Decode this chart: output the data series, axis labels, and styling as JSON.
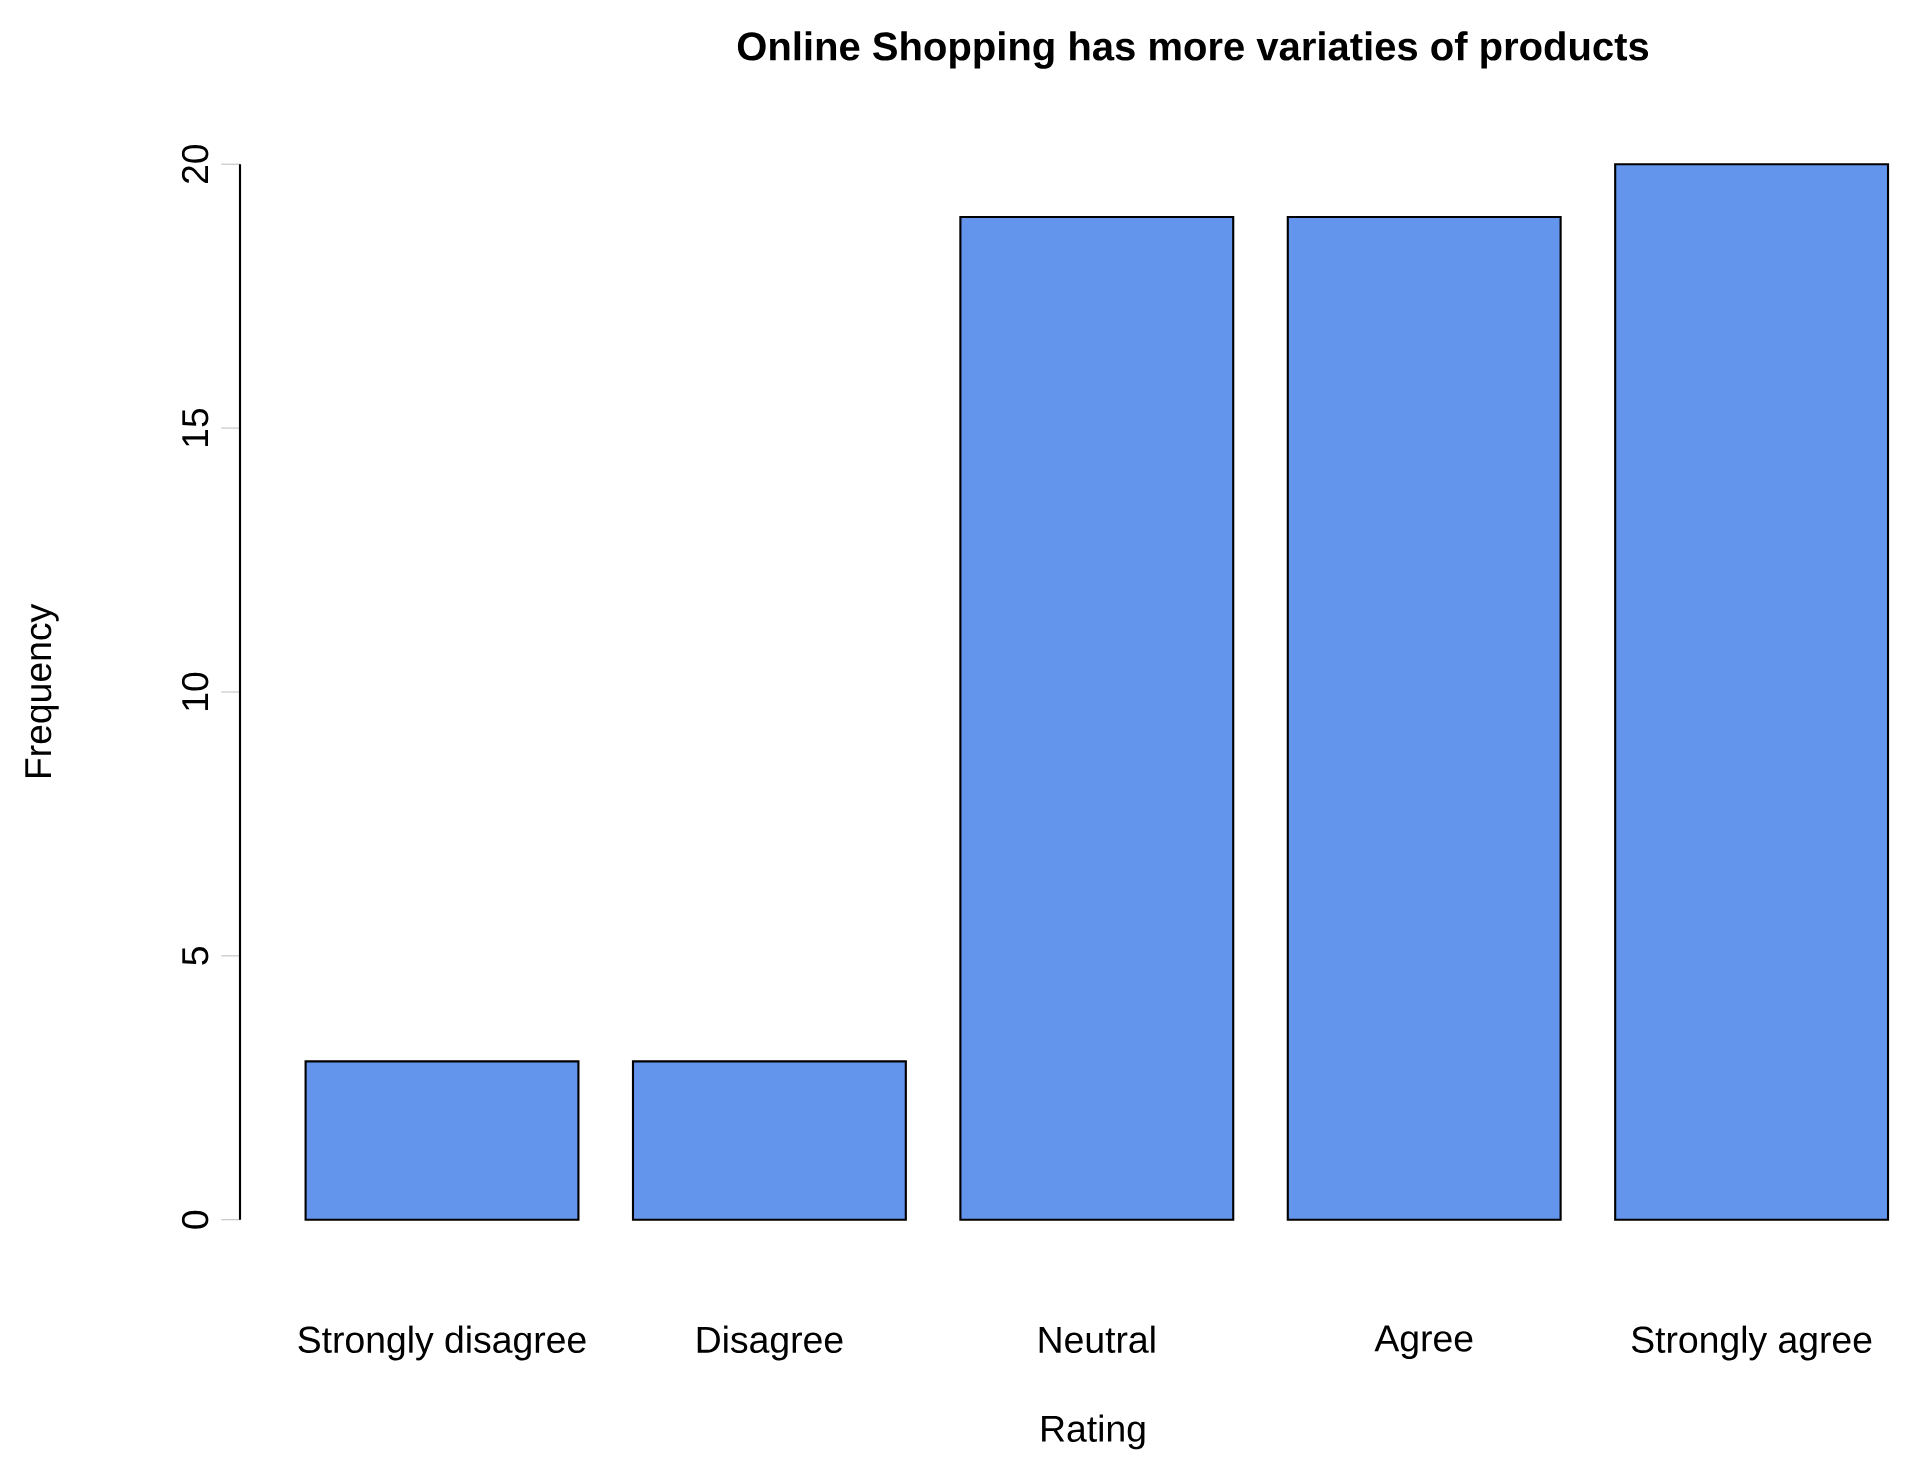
{
  "chart_data": {
    "type": "bar",
    "title": "Online Shopping has more variaties of products",
    "xlabel": "Rating",
    "ylabel": "Frequency",
    "categories": [
      "Strongly disagree",
      "Disagree",
      "Neutral",
      "Agree",
      "Strongly agree"
    ],
    "values": [
      3,
      3,
      19,
      19,
      20
    ],
    "color": "#6495ed",
    "ylim": [
      0,
      20
    ],
    "yticks": [
      0,
      5,
      10,
      15,
      20
    ]
  }
}
